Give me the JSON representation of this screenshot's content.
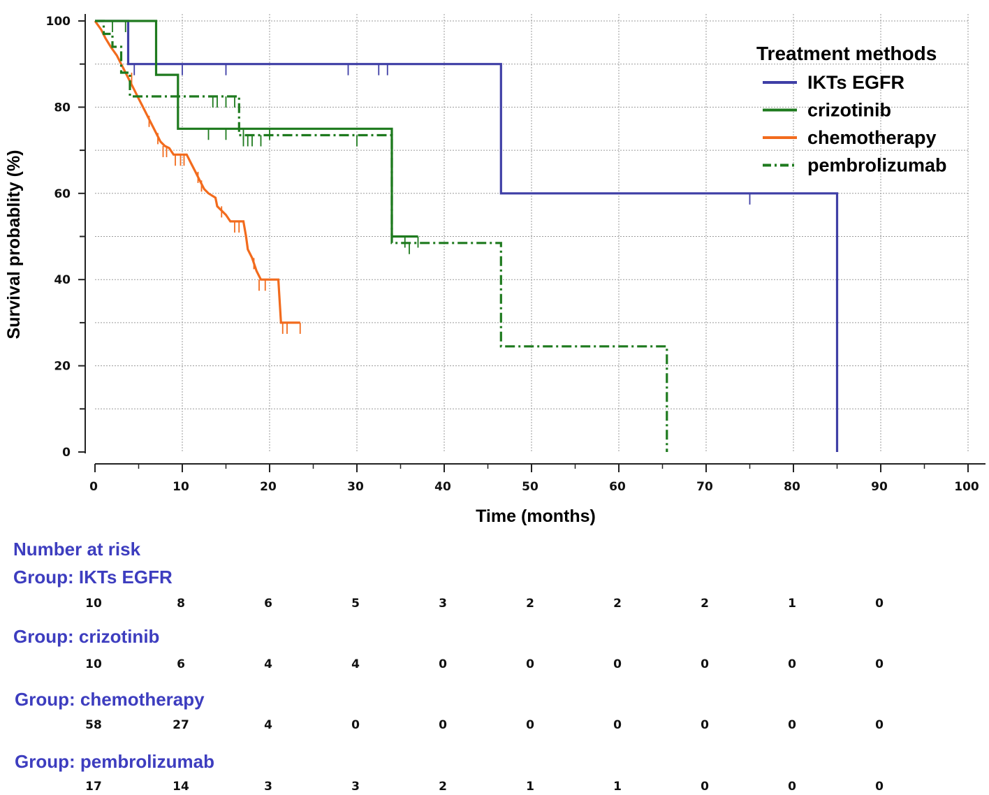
{
  "chart_data": {
    "type": "line",
    "subtype": "kaplan-meier-survival",
    "xlabel": "Time (months)",
    "ylabel": "Survival probablity (%)",
    "xlim": [
      0,
      100
    ],
    "ylim": [
      0,
      100
    ],
    "xticks": [
      0,
      10,
      20,
      30,
      40,
      50,
      60,
      70,
      80,
      90,
      100
    ],
    "yticks": [
      0,
      20,
      40,
      60,
      80,
      100
    ],
    "grid": true,
    "legend": {
      "title": "Treatment methods",
      "placement": "top-right"
    },
    "series": [
      {
        "name": "IKTs EGFR",
        "color": "#3f3fa6",
        "dash": "solid",
        "steps": [
          [
            0,
            100
          ],
          [
            3.8,
            100
          ],
          [
            3.8,
            90
          ],
          [
            46.5,
            90
          ],
          [
            46.5,
            60
          ],
          [
            85,
            60
          ],
          [
            85,
            0
          ]
        ],
        "censored": [
          [
            4.5,
            90
          ],
          [
            10,
            90
          ],
          [
            15,
            90
          ],
          [
            29,
            90
          ],
          [
            32.5,
            90
          ],
          [
            33.5,
            90
          ],
          [
            75,
            60
          ]
        ]
      },
      {
        "name": "crizotinib",
        "color": "#1e7a1e",
        "dash": "solid",
        "steps": [
          [
            0,
            100
          ],
          [
            7,
            100
          ],
          [
            7,
            87.5
          ],
          [
            9.5,
            87.5
          ],
          [
            9.5,
            75
          ],
          [
            34,
            75
          ],
          [
            34,
            50
          ],
          [
            37,
            50
          ]
        ],
        "censored": [
          [
            13,
            75
          ],
          [
            15,
            75
          ],
          [
            17,
            75
          ],
          [
            20,
            75
          ],
          [
            35.5,
            50
          ],
          [
            37,
            50
          ]
        ]
      },
      {
        "name": "chemotherapy",
        "color": "#f26b1d",
        "dash": "solid",
        "steps": [
          [
            0,
            100
          ],
          [
            0.7,
            98
          ],
          [
            1.2,
            96
          ],
          [
            1.8,
            94
          ],
          [
            2.5,
            92
          ],
          [
            3,
            90
          ],
          [
            3.5,
            88
          ],
          [
            4,
            86
          ],
          [
            4.5,
            84
          ],
          [
            5,
            82
          ],
          [
            5.5,
            80
          ],
          [
            6,
            78
          ],
          [
            6.5,
            76
          ],
          [
            7,
            74
          ],
          [
            7.5,
            72
          ],
          [
            8,
            71
          ],
          [
            8.5,
            70.5
          ],
          [
            9,
            69
          ],
          [
            10.5,
            69
          ],
          [
            11,
            67
          ],
          [
            11.5,
            65
          ],
          [
            12,
            63
          ],
          [
            12.5,
            61
          ],
          [
            13,
            60
          ],
          [
            13.8,
            59
          ],
          [
            14,
            57
          ],
          [
            15,
            55
          ],
          [
            15.5,
            53.5
          ],
          [
            17,
            53.5
          ],
          [
            17.3,
            50
          ],
          [
            17.5,
            47
          ],
          [
            18,
            45
          ],
          [
            18.5,
            42
          ],
          [
            19,
            40
          ],
          [
            21,
            40
          ],
          [
            21.3,
            30
          ],
          [
            23.5,
            30
          ]
        ],
        "censored": [
          [
            4.2,
            88
          ],
          [
            6.2,
            78
          ],
          [
            7.2,
            74
          ],
          [
            7.8,
            71
          ],
          [
            8.2,
            71
          ],
          [
            9.2,
            69
          ],
          [
            9.8,
            69
          ],
          [
            10.2,
            69
          ],
          [
            11.8,
            65
          ],
          [
            12.2,
            63
          ],
          [
            14.5,
            57
          ],
          [
            16,
            53.5
          ],
          [
            16.5,
            53.5
          ],
          [
            18.2,
            45
          ],
          [
            18.8,
            40
          ],
          [
            19.5,
            40
          ],
          [
            21.5,
            30
          ],
          [
            22,
            30
          ],
          [
            23.5,
            30
          ]
        ]
      },
      {
        "name": "pembrolizumab",
        "color": "#1e7a1e",
        "dash": "dashdot",
        "steps": [
          [
            0,
            100
          ],
          [
            1,
            100
          ],
          [
            1,
            97
          ],
          [
            2,
            97
          ],
          [
            2,
            94
          ],
          [
            3,
            94
          ],
          [
            3,
            88
          ],
          [
            4,
            88
          ],
          [
            4,
            82.5
          ],
          [
            16.5,
            82.5
          ],
          [
            16.5,
            73.5
          ],
          [
            34,
            73.5
          ],
          [
            34,
            48.5
          ],
          [
            46.5,
            48.5
          ],
          [
            46.5,
            24.5
          ],
          [
            65.5,
            24.5
          ],
          [
            65.5,
            0
          ]
        ],
        "censored": [
          [
            2,
            100
          ],
          [
            3.5,
            100
          ],
          [
            13.5,
            82.5
          ],
          [
            14,
            82.5
          ],
          [
            15,
            82.5
          ],
          [
            16,
            82.5
          ],
          [
            17,
            73.5
          ],
          [
            17.5,
            73.5
          ],
          [
            18,
            73.5
          ],
          [
            19,
            73.5
          ],
          [
            30,
            73.5
          ],
          [
            36,
            48.5
          ]
        ]
      }
    ],
    "number_at_risk": {
      "title": "Number at risk",
      "timepoints": [
        0,
        10,
        20,
        30,
        40,
        50,
        60,
        70,
        80,
        90
      ],
      "groups": [
        {
          "label": "Group: IKTs EGFR",
          "values": [
            "10",
            "8",
            "6",
            "5",
            "3",
            "2",
            "2",
            "2",
            "1",
            "0"
          ]
        },
        {
          "label": "Group: crizotinib",
          "values": [
            "10",
            "6",
            "4",
            "4",
            "0",
            "0",
            "0",
            "0",
            "0",
            "0"
          ]
        },
        {
          "label": "Group: chemotherapy",
          "values": [
            "58",
            "27",
            "4",
            "0",
            "0",
            "0",
            "0",
            "0",
            "0",
            "0"
          ]
        },
        {
          "label": "Group: pembrolizumab",
          "values": [
            "17",
            "14",
            "3",
            "3",
            "2",
            "1",
            "1",
            "0",
            "0",
            "0"
          ]
        }
      ]
    }
  }
}
